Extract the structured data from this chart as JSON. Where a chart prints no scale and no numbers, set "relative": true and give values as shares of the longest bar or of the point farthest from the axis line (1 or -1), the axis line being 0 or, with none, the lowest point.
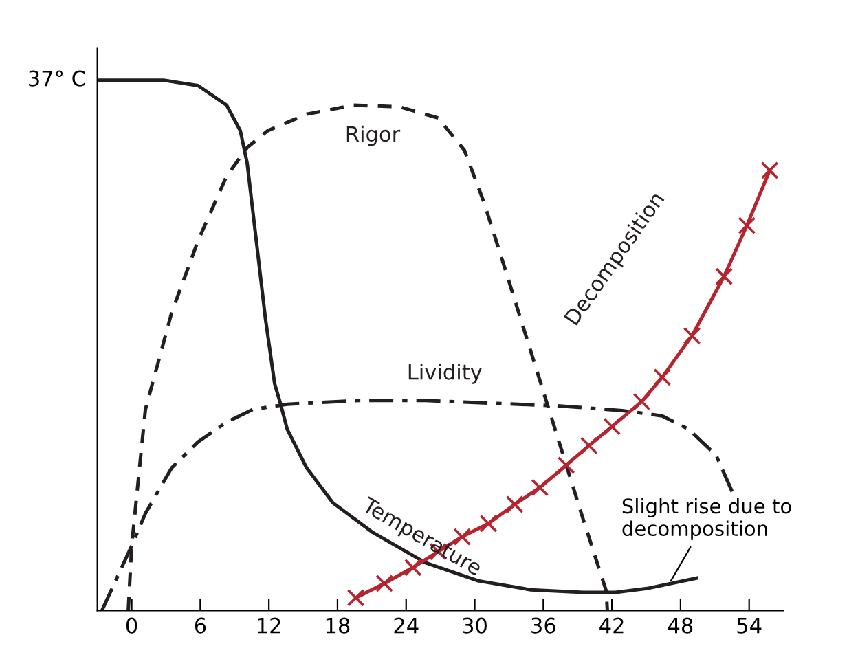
{
  "chart_data": {
    "type": "line",
    "relative": true,
    "xlim": [
      -3,
      57
    ],
    "xticks": [
      0,
      6,
      12,
      18,
      24,
      30,
      36,
      42,
      48,
      54
    ],
    "grid": false,
    "legend": false,
    "series": [
      {
        "name": "Temperature",
        "color": "#231f20",
        "line_style": "solid",
        "marker": "none",
        "x": [
          -3,
          2.8,
          5.8,
          8.3,
          9.5,
          10.1,
          10.9,
          11.7,
          12.5,
          13.0,
          13.6,
          15.3,
          17.6,
          21.1,
          25.7,
          30.3,
          34.9,
          39.5,
          42.3,
          45.2,
          49.4
        ],
        "values": [
          1.0,
          1.0,
          0.99,
          0.953,
          0.905,
          0.844,
          0.697,
          0.55,
          0.428,
          0.391,
          0.342,
          0.269,
          0.203,
          0.147,
          0.09,
          0.056,
          0.039,
          0.034,
          0.034,
          0.042,
          0.061
        ]
      },
      {
        "name": "Rigor",
        "color": "#231f20",
        "line_style": "dashed",
        "marker": "none",
        "x": [
          -0.3,
          0,
          1.2,
          3.5,
          5.8,
          8.3,
          10.1,
          11.9,
          15.3,
          19.4,
          23.4,
          26.8,
          29.1,
          30.8,
          32.6,
          34.9,
          37.2,
          39.5,
          41.5,
          41.6
        ],
        "values": [
          0,
          0.122,
          0.379,
          0.562,
          0.697,
          0.819,
          0.873,
          0.905,
          0.936,
          0.953,
          0.95,
          0.929,
          0.868,
          0.77,
          0.648,
          0.489,
          0.33,
          0.171,
          0.037,
          0
        ]
      },
      {
        "name": "Lividity",
        "color": "#231f20",
        "line_style": "dashdot",
        "marker": "none",
        "x": [
          -2.6,
          0,
          1.2,
          3.5,
          5.8,
          8.3,
          10.6,
          13.6,
          19.9,
          25.7,
          31.4,
          37.2,
          42.9,
          46.4,
          48.7,
          51.1,
          52.6
        ],
        "values": [
          0,
          0.122,
          0.183,
          0.269,
          0.318,
          0.355,
          0.379,
          0.389,
          0.396,
          0.396,
          0.391,
          0.386,
          0.377,
          0.367,
          0.342,
          0.293,
          0.22
        ]
      },
      {
        "name": "Decomposition",
        "color": "#b5252f",
        "line_style": "solid",
        "marker": "cross",
        "x": [
          19.6,
          22.1,
          24.6,
          26.8,
          28.9,
          31.2,
          33.5,
          35.7,
          38.0,
          40.0,
          42.0,
          44.6,
          46.4,
          49.0,
          51.8,
          53.8,
          55.8
        ],
        "values": [
          0.024,
          0.051,
          0.081,
          0.111,
          0.139,
          0.164,
          0.2,
          0.232,
          0.274,
          0.311,
          0.347,
          0.394,
          0.44,
          0.518,
          0.63,
          0.726,
          0.83
        ]
      }
    ],
    "annotations": [
      "37° C",
      {
        "text": "Slight rise due to\ndecomposition",
        "x": 47,
        "y": 0.05
      }
    ]
  }
}
